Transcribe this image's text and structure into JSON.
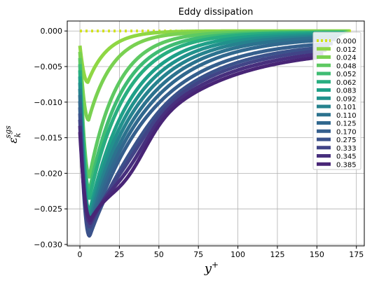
{
  "chart_data": {
    "type": "line",
    "title": "Eddy dissipation",
    "xlabel_base": "y",
    "xlabel_sup": "+",
    "ylabel_base": "ε",
    "ylabel_sub": "k",
    "ylabel_sup": "sgs",
    "xlim": [
      -8,
      180
    ],
    "ylim": [
      -0.0302,
      0.0014
    ],
    "x_ticks": [
      0,
      25,
      50,
      75,
      100,
      125,
      150,
      175
    ],
    "y_ticks": [
      0.0,
      -0.005,
      -0.01,
      -0.015,
      -0.02,
      -0.025,
      -0.03
    ],
    "y_tick_labels": [
      "0.000",
      "−0.005",
      "−0.010",
      "−0.015",
      "−0.020",
      "−0.025",
      "−0.030"
    ],
    "grid": true,
    "legend_position": "right",
    "series": [
      {
        "name": "0.000",
        "color": "#d2e21b",
        "style": "dotted",
        "xmax": 172,
        "min_y": 0.0,
        "peak_x": 5,
        "tail": 0.0
      },
      {
        "name": "0.012",
        "color": "#8fd744",
        "style": "solid",
        "xmax": 171,
        "min_y": -0.0072,
        "peak_x": 5,
        "tail": 0.0
      },
      {
        "name": "0.024",
        "color": "#7ad151",
        "style": "solid",
        "xmax": 170,
        "min_y": -0.0125,
        "peak_x": 5.5,
        "tail": -0.0001
      },
      {
        "name": "0.048",
        "color": "#5ec962",
        "style": "solid",
        "xmax": 169,
        "min_y": -0.0205,
        "peak_x": 6,
        "tail": -0.0001
      },
      {
        "name": "0.052",
        "color": "#3fbc73",
        "style": "solid",
        "xmax": 168,
        "min_y": -0.0225,
        "peak_x": 6,
        "tail": -0.0002
      },
      {
        "name": "0.062",
        "color": "#28ae80",
        "style": "solid",
        "xmax": 167,
        "min_y": -0.0235,
        "peak_x": 6,
        "tail": -0.0002
      },
      {
        "name": "0.083",
        "color": "#1fa088",
        "style": "solid",
        "xmax": 166,
        "min_y": -0.0255,
        "peak_x": 6,
        "tail": -0.0003
      },
      {
        "name": "0.092",
        "color": "#21918c",
        "style": "solid",
        "xmax": 165,
        "min_y": -0.0262,
        "peak_x": 6,
        "tail": -0.0004
      },
      {
        "name": "0.101",
        "color": "#26828e",
        "style": "solid",
        "xmax": 164,
        "min_y": -0.0268,
        "peak_x": 6,
        "tail": -0.0005
      },
      {
        "name": "0.110",
        "color": "#2c728e",
        "style": "solid",
        "xmax": 163,
        "min_y": -0.0275,
        "peak_x": 6,
        "tail": -0.0006
      },
      {
        "name": "0.125",
        "color": "#31688e",
        "style": "solid",
        "xmax": 162,
        "min_y": -0.028,
        "peak_x": 6,
        "tail": -0.0008
      },
      {
        "name": "0.170",
        "color": "#355f8d",
        "style": "solid",
        "xmax": 160,
        "min_y": -0.0285,
        "peak_x": 6,
        "tail": -0.0012
      },
      {
        "name": "0.275",
        "color": "#3b528b",
        "style": "solid",
        "xmax": 158,
        "min_y": -0.0288,
        "peak_x": 6,
        "tail": -0.0015
      },
      {
        "name": "0.333",
        "color": "#414487",
        "style": "solid",
        "xmax": 156,
        "min_y": -0.0275,
        "peak_x": 6,
        "tail": -0.0018
      },
      {
        "name": "0.345",
        "color": "#472f7d",
        "style": "solid",
        "xmax": 154,
        "min_y": -0.0268,
        "peak_x": 6,
        "tail": -0.0021
      },
      {
        "name": "0.385",
        "color": "#482576",
        "style": "solid",
        "xmax": 152,
        "min_y": -0.0262,
        "peak_x": 6,
        "tail": -0.0024
      }
    ]
  }
}
